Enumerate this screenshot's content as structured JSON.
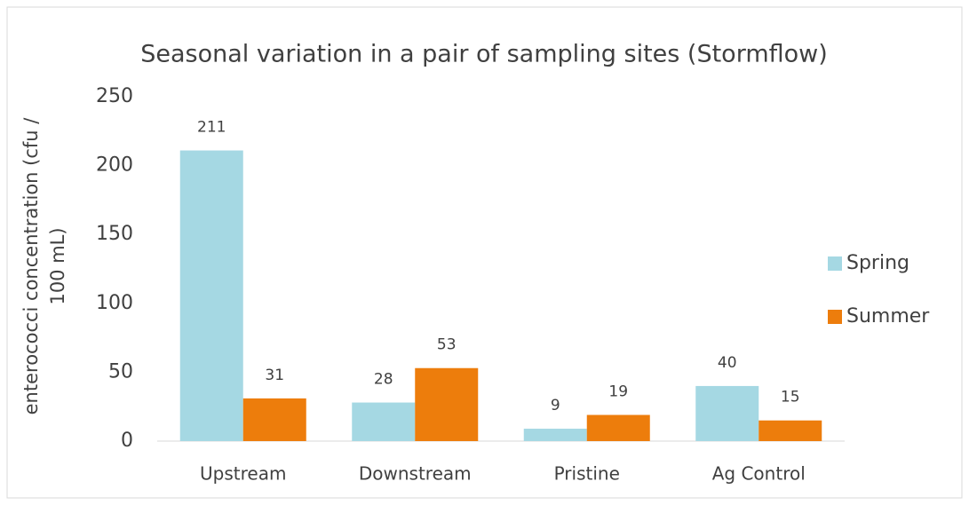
{
  "chart_data": {
    "type": "bar",
    "title": "Seasonal variation in a pair of sampling sites (Stormflow)",
    "y_label": [
      "enterococci concentration (cfu /",
      "100 mL)"
    ],
    "categories": [
      "Upstream",
      "Downstream",
      "Pristine",
      "Ag Control"
    ],
    "series": [
      {
        "name": "Spring",
        "color": "#a5d8e3",
        "values": [
          211,
          28,
          9,
          40
        ]
      },
      {
        "name": "Summer",
        "color": "#ed7d0c",
        "values": [
          31,
          53,
          19,
          15
        ]
      }
    ],
    "ylim": [
      0,
      250
    ],
    "yticks": [
      0,
      50,
      100,
      150,
      200,
      250
    ],
    "grid": false,
    "legend": "right"
  }
}
